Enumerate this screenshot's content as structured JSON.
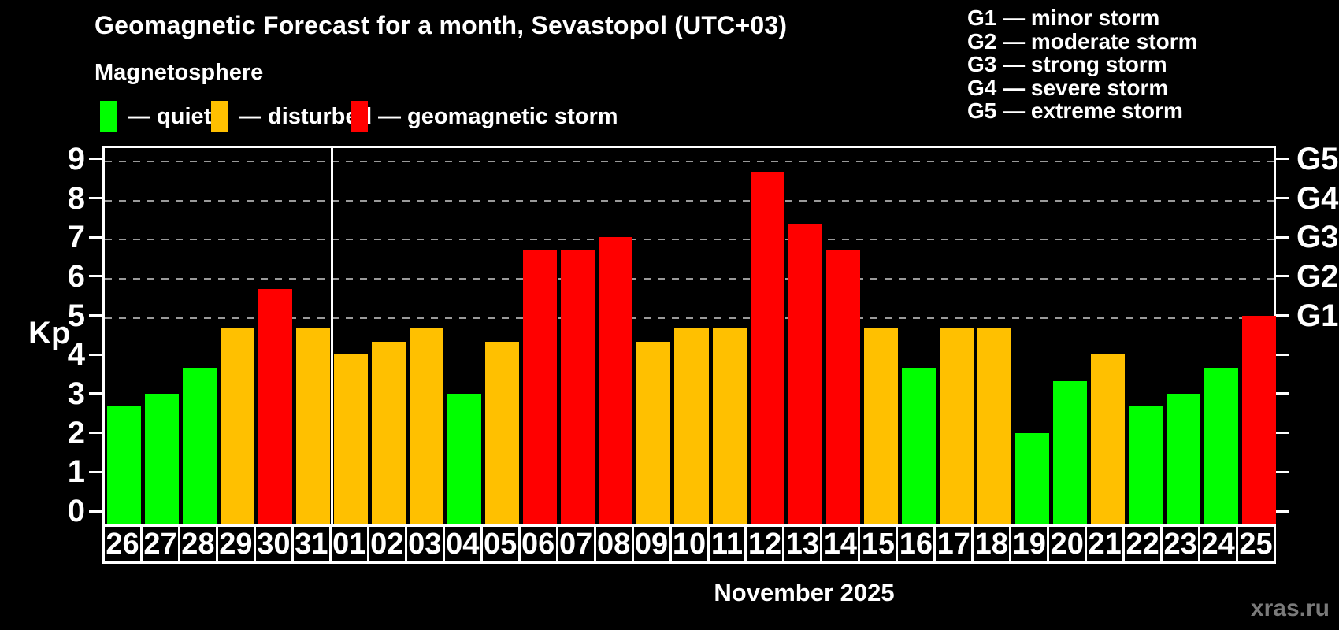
{
  "header": {
    "title": "Geomagnetic Forecast for a month, Sevastopol (UTC+03)",
    "subtitle": "Magnetosphere"
  },
  "legend": {
    "items": [
      {
        "label": "— quiet",
        "color": "#00ff00",
        "status": "quiet"
      },
      {
        "label": "— disturbed",
        "color": "#ffc000",
        "status": "disturbed"
      },
      {
        "label": "— geomagnetic storm",
        "color": "#ff0000",
        "status": "storm"
      }
    ]
  },
  "storm_scale": {
    "items": [
      "G1 — minor storm",
      "G2 — moderate storm",
      "G3 — strong storm",
      "G4 — severe storm",
      "G5 — extreme storm"
    ]
  },
  "axis": {
    "kp_label": "Kp",
    "left_ticks": [
      0,
      1,
      2,
      3,
      4,
      5,
      6,
      7,
      8,
      9
    ],
    "right_labels": [
      {
        "kp": 5,
        "label": "G1"
      },
      {
        "kp": 6,
        "label": "G2"
      },
      {
        "kp": 7,
        "label": "G3"
      },
      {
        "kp": 8,
        "label": "G4"
      },
      {
        "kp": 9,
        "label": "G5"
      }
    ]
  },
  "footer": {
    "month_label": "November 2025",
    "watermark": "xras.ru"
  },
  "chart_data": {
    "type": "bar",
    "title": "Geomagnetic Forecast for a month, Sevastopol (UTC+03)",
    "xlabel": "November 2025",
    "ylabel": "Kp",
    "ylim": [
      0,
      9
    ],
    "grid": "dashed horizontal lines at Kp 5-9 only",
    "legend_position": "top-left",
    "gridlines_kp": [
      5,
      6,
      7,
      8,
      9
    ],
    "month_separator_after_index": 5,
    "status_colors": {
      "quiet": "#00ff00",
      "disturbed": "#ffc000",
      "storm": "#ff0000"
    },
    "categories": [
      "26",
      "27",
      "28",
      "29",
      "30",
      "31",
      "01",
      "02",
      "03",
      "04",
      "05",
      "06",
      "07",
      "08",
      "09",
      "10",
      "11",
      "12",
      "13",
      "14",
      "15",
      "16",
      "17",
      "18",
      "19",
      "20",
      "21",
      "22",
      "23",
      "24",
      "25"
    ],
    "values": [
      2.67,
      3,
      3.67,
      4.67,
      5.67,
      4.67,
      4,
      4.33,
      4.67,
      3,
      4.33,
      6.67,
      6.67,
      7,
      4.33,
      4.67,
      4.67,
      8.67,
      7.33,
      6.67,
      4.67,
      3.67,
      4.67,
      4.67,
      2,
      3.33,
      4,
      2.67,
      3,
      3.67,
      5
    ],
    "bars": [
      {
        "date": "26",
        "kp": 2.67,
        "status": "quiet"
      },
      {
        "date": "27",
        "kp": 3,
        "status": "quiet"
      },
      {
        "date": "28",
        "kp": 3.67,
        "status": "quiet"
      },
      {
        "date": "29",
        "kp": 4.67,
        "status": "disturbed"
      },
      {
        "date": "30",
        "kp": 5.67,
        "status": "storm"
      },
      {
        "date": "31",
        "kp": 4.67,
        "status": "disturbed"
      },
      {
        "date": "01",
        "kp": 4,
        "status": "disturbed"
      },
      {
        "date": "02",
        "kp": 4.33,
        "status": "disturbed"
      },
      {
        "date": "03",
        "kp": 4.67,
        "status": "disturbed"
      },
      {
        "date": "04",
        "kp": 3,
        "status": "quiet"
      },
      {
        "date": "05",
        "kp": 4.33,
        "status": "disturbed"
      },
      {
        "date": "06",
        "kp": 6.67,
        "status": "storm"
      },
      {
        "date": "07",
        "kp": 6.67,
        "status": "storm"
      },
      {
        "date": "08",
        "kp": 7,
        "status": "storm"
      },
      {
        "date": "09",
        "kp": 4.33,
        "status": "disturbed"
      },
      {
        "date": "10",
        "kp": 4.67,
        "status": "disturbed"
      },
      {
        "date": "11",
        "kp": 4.67,
        "status": "disturbed"
      },
      {
        "date": "12",
        "kp": 8.67,
        "status": "storm"
      },
      {
        "date": "13",
        "kp": 7.33,
        "status": "storm"
      },
      {
        "date": "14",
        "kp": 6.67,
        "status": "storm"
      },
      {
        "date": "15",
        "kp": 4.67,
        "status": "disturbed"
      },
      {
        "date": "16",
        "kp": 3.67,
        "status": "quiet"
      },
      {
        "date": "17",
        "kp": 4.67,
        "status": "disturbed"
      },
      {
        "date": "18",
        "kp": 4.67,
        "status": "disturbed"
      },
      {
        "date": "19",
        "kp": 2,
        "status": "quiet"
      },
      {
        "date": "20",
        "kp": 3.33,
        "status": "quiet"
      },
      {
        "date": "21",
        "kp": 4,
        "status": "disturbed"
      },
      {
        "date": "22",
        "kp": 2.67,
        "status": "quiet"
      },
      {
        "date": "23",
        "kp": 3,
        "status": "quiet"
      },
      {
        "date": "24",
        "kp": 3.67,
        "status": "quiet"
      },
      {
        "date": "25",
        "kp": 5,
        "status": "storm"
      }
    ]
  }
}
